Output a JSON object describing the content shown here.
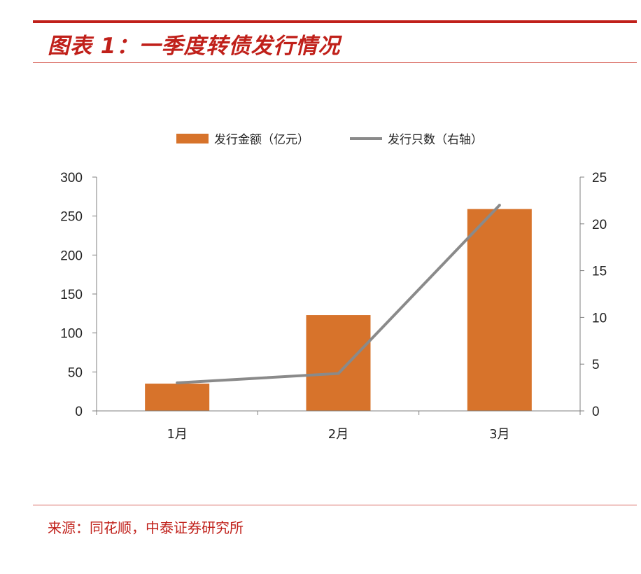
{
  "title": "图表 1：一季度转债发行情况",
  "source": "来源：同花顺，中泰证券研究所",
  "colors": {
    "accent": "#c0201a",
    "bar": "#d7732b",
    "line": "#8a8a8a",
    "axis": "#7f7f7f"
  },
  "chart_data": {
    "type": "bar",
    "categories": [
      "1月",
      "2月",
      "3月"
    ],
    "series": [
      {
        "name": "发行金额（亿元）",
        "type": "bar",
        "axis": "left",
        "values": [
          35,
          123,
          259
        ]
      },
      {
        "name": "发行只数（右轴）",
        "type": "line",
        "axis": "right",
        "values": [
          3,
          4,
          22
        ]
      }
    ],
    "y_left": {
      "min": 0,
      "max": 300,
      "ticks": [
        0,
        50,
        100,
        150,
        200,
        250,
        300
      ]
    },
    "y_right": {
      "min": 0,
      "max": 25,
      "ticks": [
        0,
        5,
        10,
        15,
        20,
        25
      ]
    },
    "legend_position": "top",
    "grid": false
  }
}
